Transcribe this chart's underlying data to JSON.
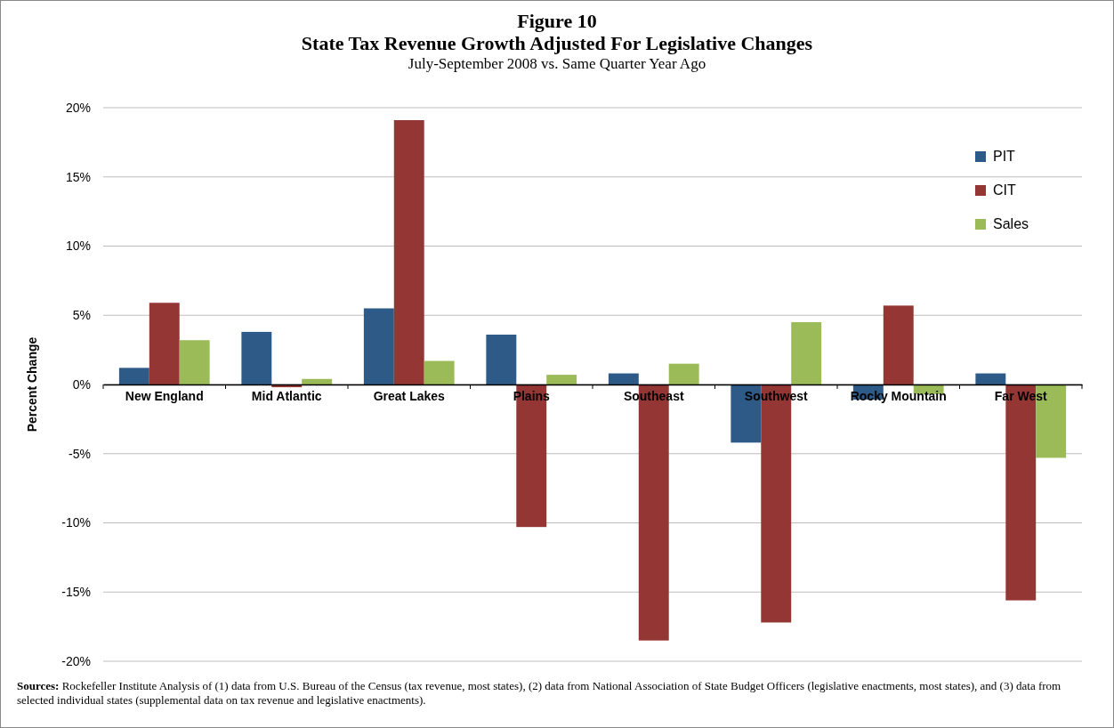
{
  "chart_data": {
    "type": "bar",
    "title": "Figure 10\nState Tax Revenue Growth Adjusted For Legislative Changes",
    "subtitle": "July-September 2008 vs. Same Quarter Year Ago",
    "ylabel": "Percent Change",
    "categories": [
      "New England",
      "Mid Atlantic",
      "Great Lakes",
      "Plains",
      "Southeast",
      "Southwest",
      "Rocky Mountain",
      "Far West"
    ],
    "series": [
      {
        "name": "PIT",
        "color": "#2e5a87",
        "values": [
          1.2,
          3.8,
          5.5,
          3.6,
          0.8,
          -4.2,
          -1.1,
          0.8
        ]
      },
      {
        "name": "CIT",
        "color": "#943634",
        "values": [
          5.9,
          -0.2,
          19.1,
          -10.3,
          -18.5,
          -17.2,
          5.7,
          -15.6
        ]
      },
      {
        "name": "Sales",
        "color": "#9bbb59",
        "values": [
          3.2,
          0.4,
          1.7,
          0.7,
          1.5,
          4.5,
          -0.7,
          -5.3
        ]
      }
    ],
    "ylim": [
      -20,
      20
    ],
    "yticks": [
      {
        "value": -20,
        "label": "-20%"
      },
      {
        "value": -15,
        "label": "-15%"
      },
      {
        "value": -10,
        "label": "-10%"
      },
      {
        "value": -5,
        "label": "-5%"
      },
      {
        "value": 0,
        "label": "0%"
      },
      {
        "value": 5,
        "label": "5%"
      },
      {
        "value": 10,
        "label": "10%"
      },
      {
        "value": 15,
        "label": "15%"
      },
      {
        "value": 20,
        "label": "20%"
      }
    ],
    "grid": "y",
    "legend": "top right",
    "annotations": [
      "Sources: Rockefeller Institute Analysis of (1) data from U.S. Bureau of the Census (tax revenue, most states), (2) data from National Association of State Budget Officers (legislative enactments, most states), and (3) data from selected individual states (supplemental data on tax revenue and legislative enactments)."
    ]
  }
}
